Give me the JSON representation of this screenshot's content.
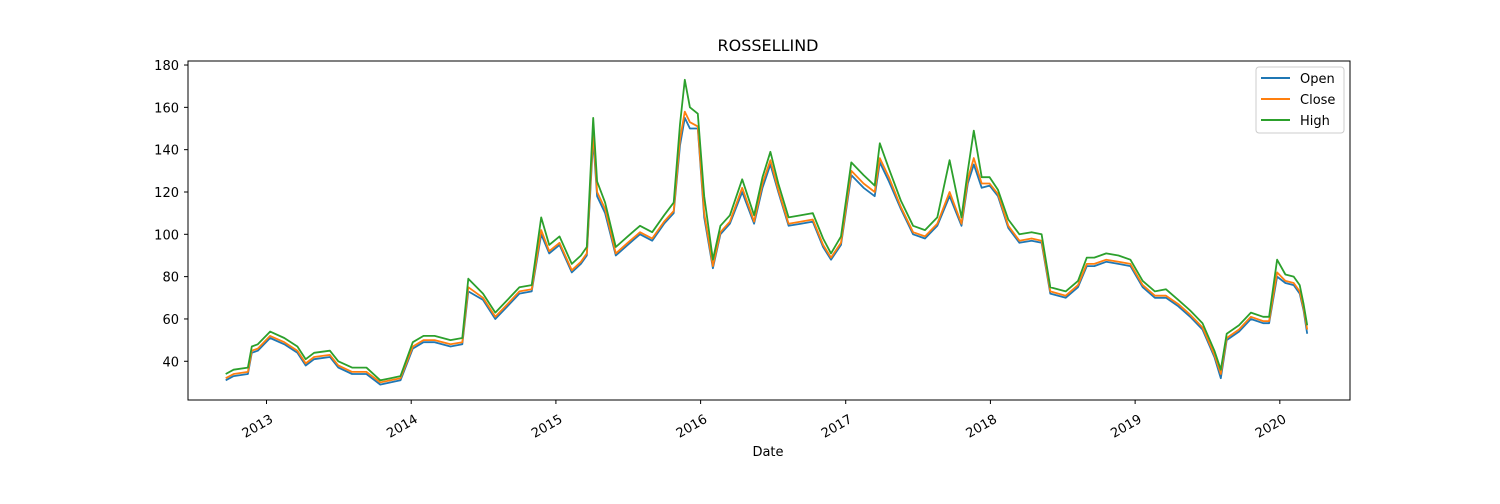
{
  "chart_data": {
    "type": "line",
    "title": "ROSSELLIND",
    "xlabel": "Date",
    "ylabel": "",
    "x_ticks": [
      "2013",
      "2014",
      "2015",
      "2016",
      "2017",
      "2018",
      "2019",
      "2020"
    ],
    "y_ticks": [
      40,
      60,
      80,
      100,
      120,
      140,
      160,
      180
    ],
    "xlim": [
      "2012-06-17",
      "2020-06-26"
    ],
    "ylim": [
      21.7,
      181.9
    ],
    "grid": false,
    "legend_position": "top-right",
    "colors": {
      "Open": "#1f77b4",
      "Close": "#ff7f0e",
      "High": "#2ca02c"
    },
    "x": [
      "2012-09-20",
      "2012-10-10",
      "2012-11-15",
      "2012-11-25",
      "2012-12-10",
      "2013-01-10",
      "2013-02-15",
      "2013-03-20",
      "2013-04-10",
      "2013-05-01",
      "2013-06-10",
      "2013-07-01",
      "2013-08-05",
      "2013-09-10",
      "2013-10-15",
      "2013-11-10",
      "2013-12-05",
      "2014-01-05",
      "2014-02-01",
      "2014-03-01",
      "2014-04-10",
      "2014-05-10",
      "2014-05-25",
      "2014-07-01",
      "2014-08-01",
      "2014-09-01",
      "2014-10-01",
      "2014-11-01",
      "2014-11-25",
      "2014-12-15",
      "2015-01-10",
      "2015-02-10",
      "2015-03-05",
      "2015-03-20",
      "2015-04-05",
      "2015-04-15",
      "2015-05-05",
      "2015-06-01",
      "2015-07-01",
      "2015-08-01",
      "2015-09-01",
      "2015-10-01",
      "2015-10-25",
      "2015-11-10",
      "2015-11-22",
      "2015-12-05",
      "2015-12-25",
      "2016-01-10",
      "2016-02-01",
      "2016-02-20",
      "2016-03-15",
      "2016-04-15",
      "2016-05-15",
      "2016-06-05",
      "2016-06-25",
      "2016-07-15",
      "2016-08-10",
      "2016-09-10",
      "2016-10-10",
      "2016-11-05",
      "2016-11-25",
      "2016-12-20",
      "2017-01-15",
      "2017-02-15",
      "2017-03-15",
      "2017-03-28",
      "2017-04-20",
      "2017-05-20",
      "2017-06-20",
      "2017-07-20",
      "2017-08-20",
      "2017-09-20",
      "2017-10-20",
      "2017-11-05",
      "2017-11-20",
      "2017-12-10",
      "2017-12-30",
      "2018-01-20",
      "2018-02-15",
      "2018-03-15",
      "2018-04-15",
      "2018-05-10",
      "2018-06-01",
      "2018-07-10",
      "2018-08-10",
      "2018-09-01",
      "2018-09-20",
      "2018-10-20",
      "2018-11-20",
      "2018-12-20",
      "2019-01-20",
      "2019-02-20",
      "2019-03-20",
      "2019-04-20",
      "2019-05-20",
      "2019-06-20",
      "2019-07-20",
      "2019-08-05",
      "2019-08-20",
      "2019-09-20",
      "2019-10-20",
      "2019-11-20",
      "2019-12-05",
      "2019-12-25",
      "2020-01-15",
      "2020-02-05",
      "2020-02-20",
      "2020-03-01",
      "2020-03-10"
    ],
    "series": [
      {
        "name": "Open",
        "values": [
          31,
          33,
          34,
          44,
          45,
          51,
          48,
          44,
          38,
          41,
          42,
          37,
          34,
          34,
          29,
          30,
          31,
          46,
          49,
          49,
          47,
          48,
          73,
          69,
          60,
          66,
          72,
          73,
          100,
          91,
          95,
          82,
          86,
          90,
          145,
          118,
          110,
          90,
          95,
          100,
          97,
          105,
          110,
          142,
          155,
          150,
          150,
          108,
          84,
          100,
          105,
          120,
          105,
          122,
          133,
          120,
          104,
          105,
          106,
          94,
          88,
          95,
          128,
          122,
          118,
          134,
          125,
          112,
          100,
          98,
          104,
          118,
          104,
          124,
          133,
          122,
          123,
          118,
          103,
          96,
          97,
          96,
          72,
          70,
          75,
          85,
          85,
          87,
          86,
          85,
          75,
          70,
          70,
          66,
          61,
          55,
          42,
          32,
          50,
          54,
          60,
          58,
          58,
          80,
          77,
          76,
          72,
          64,
          53
        ]
      },
      {
        "name": "Close",
        "values": [
          32,
          34,
          35,
          45,
          46,
          52,
          49,
          45,
          39,
          42,
          43,
          38,
          35,
          35,
          30,
          31,
          32,
          47,
          50,
          50,
          48,
          49,
          75,
          70,
          61,
          67,
          73,
          74,
          102,
          92,
          96,
          83,
          87,
          91,
          148,
          120,
          112,
          91,
          96,
          101,
          98,
          106,
          111,
          145,
          158,
          153,
          151,
          110,
          85,
          101,
          106,
          122,
          106,
          124,
          135,
          121,
          105,
          106,
          107,
          95,
          89,
          96,
          130,
          124,
          120,
          136,
          127,
          113,
          101,
          99,
          105,
          120,
          105,
          126,
          136,
          124,
          124,
          119,
          104,
          97,
          98,
          97,
          73,
          71,
          76,
          86,
          86,
          88,
          87,
          86,
          76,
          71,
          71,
          67,
          62,
          56,
          43,
          34,
          51,
          55,
          61,
          59,
          59,
          82,
          78,
          77,
          73,
          65,
          55
        ]
      },
      {
        "name": "High",
        "values": [
          34,
          36,
          37,
          47,
          48,
          54,
          51,
          47,
          41,
          44,
          45,
          40,
          37,
          37,
          31,
          32,
          33,
          49,
          52,
          52,
          50,
          51,
          79,
          72,
          63,
          69,
          75,
          76,
          108,
          95,
          99,
          86,
          90,
          94,
          155,
          125,
          115,
          94,
          99,
          104,
          101,
          109,
          115,
          152,
          173,
          160,
          157,
          118,
          88,
          104,
          109,
          126,
          109,
          127,
          139,
          124,
          108,
          109,
          110,
          98,
          91,
          99,
          134,
          128,
          123,
          143,
          131,
          116,
          104,
          102,
          108,
          135,
          108,
          130,
          149,
          127,
          127,
          121,
          107,
          100,
          101,
          100,
          75,
          73,
          78,
          89,
          89,
          91,
          90,
          88,
          78,
          73,
          74,
          69,
          64,
          58,
          45,
          36,
          53,
          57,
          63,
          61,
          61,
          88,
          81,
          80,
          76,
          67,
          57
        ]
      }
    ]
  }
}
